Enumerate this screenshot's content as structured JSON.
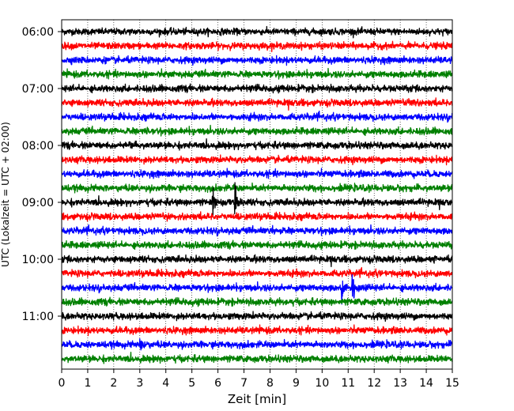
{
  "chart_data": {
    "type": "line",
    "subtype": "helicorder",
    "xlabel": "Zeit  [min]",
    "ylabel": "UTC (Lokalzeit = UTC + 02:00)",
    "x_ticks": [
      "0",
      "1",
      "2",
      "3",
      "4",
      "5",
      "6",
      "7",
      "8",
      "9",
      "10",
      "11",
      "12",
      "13",
      "14",
      "15"
    ],
    "xlim": [
      0,
      15
    ],
    "grid": "vertical dotted",
    "y_ticks": [
      {
        "label": "06:00",
        "row": 0
      },
      {
        "label": "07:00",
        "row": 4
      },
      {
        "label": "08:00",
        "row": 8
      },
      {
        "label": "09:00",
        "row": 12
      },
      {
        "label": "10:00",
        "row": 16
      },
      {
        "label": "11:00",
        "row": 20
      }
    ],
    "row_interval_min": 15,
    "colors": [
      "#000000",
      "#ff0000",
      "#0000ff",
      "#008000"
    ],
    "traces": [
      {
        "start": "06:00",
        "color": "#000000",
        "events": []
      },
      {
        "start": "06:15",
        "color": "#ff0000",
        "events": []
      },
      {
        "start": "06:30",
        "color": "#0000ff",
        "events": []
      },
      {
        "start": "06:45",
        "color": "#008000",
        "events": [
          {
            "t": 4.1,
            "amp": 0.3
          }
        ]
      },
      {
        "start": "07:00",
        "color": "#000000",
        "events": []
      },
      {
        "start": "07:15",
        "color": "#ff0000",
        "events": [
          {
            "t": 13.2,
            "amp": 0.25
          }
        ]
      },
      {
        "start": "07:30",
        "color": "#0000ff",
        "events": [
          {
            "t": 6.9,
            "amp": 0.45
          }
        ]
      },
      {
        "start": "07:45",
        "color": "#008000",
        "events": [
          {
            "t": 3.1,
            "amp": 0.25
          }
        ]
      },
      {
        "start": "08:00",
        "color": "#000000",
        "events": [
          {
            "t": 2.6,
            "amp": 0.4
          }
        ]
      },
      {
        "start": "08:15",
        "color": "#ff0000",
        "events": []
      },
      {
        "start": "08:30",
        "color": "#0000ff",
        "events": [
          {
            "t": 14.7,
            "amp": 0.35
          }
        ]
      },
      {
        "start": "08:45",
        "color": "#008000",
        "events": []
      },
      {
        "start": "09:00",
        "color": "#000000",
        "events": [
          {
            "t": 5.8,
            "amp": 2.1
          },
          {
            "t": 6.65,
            "amp": 3.2
          }
        ]
      },
      {
        "start": "09:15",
        "color": "#ff0000",
        "events": []
      },
      {
        "start": "09:30",
        "color": "#0000ff",
        "events": [
          {
            "t": 8.1,
            "amp": 0.3
          }
        ]
      },
      {
        "start": "09:45",
        "color": "#008000",
        "events": []
      },
      {
        "start": "10:00",
        "color": "#000000",
        "events": [
          {
            "t": 14.3,
            "amp": 0.35
          }
        ]
      },
      {
        "start": "10:15",
        "color": "#ff0000",
        "events": [
          {
            "t": 1.7,
            "amp": 0.25
          }
        ]
      },
      {
        "start": "10:30",
        "color": "#0000ff",
        "events": [
          {
            "t": 10.75,
            "amp": 2.0
          },
          {
            "t": 11.15,
            "amp": 3.8
          }
        ]
      },
      {
        "start": "10:45",
        "color": "#008000",
        "events": [
          {
            "t": 8.5,
            "amp": 0.25
          }
        ]
      },
      {
        "start": "11:00",
        "color": "#000000",
        "events": [
          {
            "t": 1.9,
            "amp": 0.3
          }
        ]
      },
      {
        "start": "11:15",
        "color": "#ff0000",
        "events": []
      },
      {
        "start": "11:30",
        "color": "#0000ff",
        "events": [
          {
            "t": 3.0,
            "amp": 0.55
          }
        ]
      },
      {
        "start": "11:45",
        "color": "#008000",
        "events": [
          {
            "t": 3.6,
            "amp": 0.25
          }
        ]
      }
    ]
  }
}
